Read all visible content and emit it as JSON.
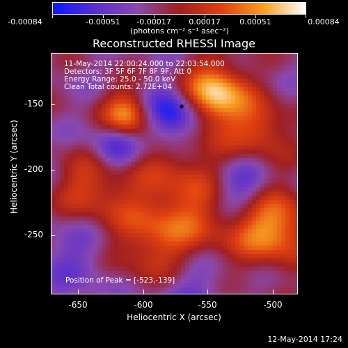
{
  "colorbar": {
    "tick_labels": [
      "-0.00084",
      "-0.00051",
      "-0.00017",
      "0.00017",
      "0.00051",
      "0.00084"
    ],
    "units": "(photons cm⁻² s⁻¹ asec⁻²)",
    "colors": [
      "#0a1aff",
      "#5b2fcf",
      "#8a4ab0",
      "#a02020",
      "#e04010",
      "#f8a020",
      "#ffffff"
    ]
  },
  "plot": {
    "title": "Reconstructed RHESSI Image",
    "info_lines": [
      "11-May-2014 22:00:24.000 to 22:03:54.000",
      "Detectors: 3F 5F 6F 7F 8F 9F, Att 0",
      "Energy Range: 25.0 - 50.0 keV",
      "Clean     Total counts: 2.72E+04"
    ],
    "peak_text": "Position of Peak = [-523,-139]",
    "x_ticks": [
      "-650",
      "-600",
      "-550",
      "-500"
    ],
    "y_ticks": [
      "-150",
      "-200",
      "-250"
    ],
    "xlabel": "Heliocentric X (arcsec)",
    "ylabel": "Heliocentric Y (arcsec)"
  },
  "footer": {
    "timestamp": "12-May-2014 17:24"
  }
}
